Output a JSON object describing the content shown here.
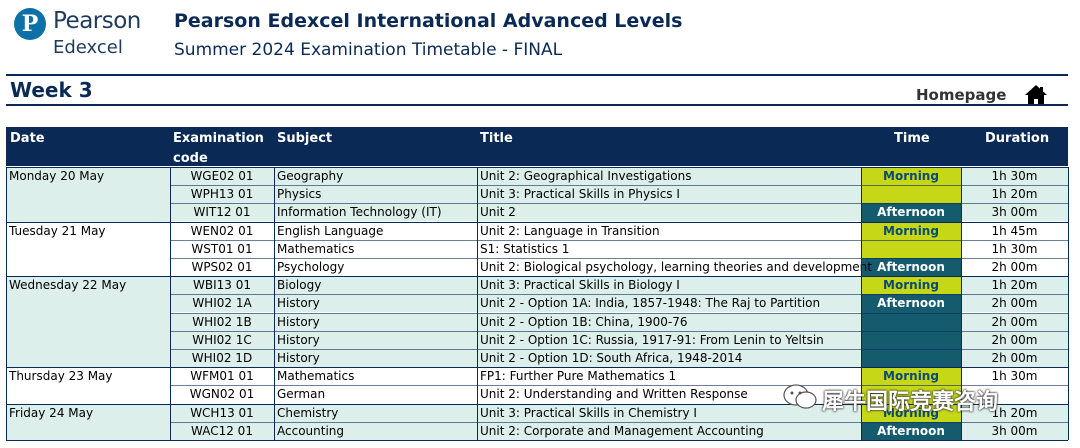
{
  "logo": {
    "mark": "P",
    "line1": "Pearson",
    "line2": "Edexcel"
  },
  "header": {
    "title": "Pearson Edexcel International Advanced Levels",
    "subtitle": "Summer 2024 Examination Timetable - FINAL"
  },
  "week": "Week 3",
  "homepage_label": "Homepage",
  "columns": {
    "date": "Date",
    "code_line1": "Examination",
    "code_line2": "code",
    "subject": "Subject",
    "title": "Title",
    "time": "Time",
    "duration": "Duration"
  },
  "rows": [
    {
      "date": "Monday 20 May",
      "code": "WGE02 01",
      "subject": "Geography",
      "title": "Unit 2: Geographical Investigations",
      "time": "Morning",
      "duration": "1h 30m"
    },
    {
      "date": "",
      "code": "WPH13 01",
      "subject": "Physics",
      "title": "Unit 3: Practical Skills in Physics I",
      "time": "",
      "duration": "1h 20m"
    },
    {
      "date": "",
      "code": "WIT12 01",
      "subject": "Information Technology (IT)",
      "title": "Unit 2",
      "time": "Afternoon",
      "duration": "3h 00m"
    },
    {
      "date": "Tuesday 21 May",
      "code": "WEN02 01",
      "subject": "English Language",
      "title": "Unit 2: Language in Transition",
      "time": "Morning",
      "duration": "1h 45m"
    },
    {
      "date": "",
      "code": "WST01 01",
      "subject": "Mathematics",
      "title": "S1: Statistics 1",
      "time": "",
      "duration": "1h 30m"
    },
    {
      "date": "",
      "code": "WPS02 01",
      "subject": "Psychology",
      "title": "Unit 2: Biological psychology, learning theories and development",
      "time": "Afternoon",
      "duration": "2h 00m"
    },
    {
      "date": "Wednesday 22 May",
      "code": "WBI13 01",
      "subject": "Biology",
      "title": "Unit 3: Practical Skills in Biology I",
      "time": "Morning",
      "duration": "1h 20m"
    },
    {
      "date": "",
      "code": "WHI02 1A",
      "subject": "History",
      "title": "Unit 2 - Option 1A: India, 1857-1948: The Raj to Partition",
      "time": "Afternoon",
      "duration": "2h 00m"
    },
    {
      "date": "",
      "code": "WHI02 1B",
      "subject": "History",
      "title": "Unit 2 - Option 1B: China, 1900-76",
      "time": "",
      "duration": "2h 00m"
    },
    {
      "date": "",
      "code": "WHI02 1C",
      "subject": "History",
      "title": "Unit 2 - Option 1C: Russia, 1917-91: From Lenin to Yeltsin",
      "time": "",
      "duration": "2h 00m"
    },
    {
      "date": "",
      "code": "WHI02 1D",
      "subject": "History",
      "title": "Unit 2 - Option 1D: South Africa, 1948-2014",
      "time": "",
      "duration": "2h 00m"
    },
    {
      "date": "Thursday 23 May",
      "code": "WFM01 01",
      "subject": "Mathematics",
      "title": "FP1: Further Pure Mathematics 1",
      "time": "Morning",
      "duration": "1h 30m"
    },
    {
      "date": "",
      "code": "WGN02 01",
      "subject": "German",
      "title": "Unit 2: Understanding and Written Response",
      "time": "",
      "duration": ""
    },
    {
      "date": "Friday 24 May",
      "code": "WCH13 01",
      "subject": "Chemistry",
      "title": "Unit 3: Practical Skills in Chemistry I",
      "time": "Morning",
      "duration": "1h 20m"
    },
    {
      "date": "",
      "code": "WAC12 01",
      "subject": "Accounting",
      "title": "Unit 2: Corporate and Management Accounting",
      "time": "Afternoon",
      "duration": "3h 00m"
    }
  ],
  "watermark": "犀牛国际竞赛咨询",
  "colors": {
    "navy": "#0a2a55",
    "morning": "#c6d718",
    "afternoon": "#155b6e",
    "row_tint": "#dcefea"
  }
}
